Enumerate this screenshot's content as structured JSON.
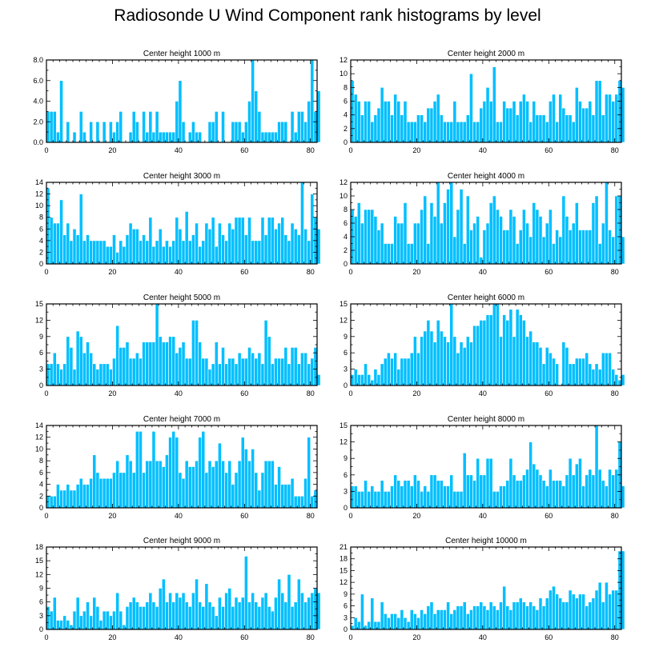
{
  "title": "Radiosonde U Wind Component rank histograms by level",
  "colors": {
    "bar": "#00bfff",
    "bar_edge": "#ffffff",
    "axis": "#000000"
  },
  "chart_data": [
    {
      "type": "bar",
      "title": "Center height 1000 m",
      "xlim": [
        0,
        82
      ],
      "ylim": [
        0,
        8
      ],
      "xticks": [
        0,
        20,
        40,
        60,
        80
      ],
      "yticks": [
        0,
        2,
        4,
        6,
        8
      ],
      "ytick_labels": [
        "0.0",
        "2.0",
        "4.0",
        "6.0",
        "8.0"
      ],
      "values": [
        3,
        3,
        3,
        1,
        6,
        0,
        2,
        0,
        1,
        0,
        3,
        1,
        0,
        2,
        0,
        2,
        0,
        2,
        0,
        2,
        1,
        2,
        3,
        0,
        0,
        1,
        3,
        2,
        0,
        3,
        1,
        3,
        1,
        3,
        1,
        1,
        1,
        1,
        1,
        4,
        6,
        2,
        0,
        1,
        2,
        1,
        1,
        0,
        0,
        2,
        2,
        3,
        0,
        3,
        0,
        0,
        2,
        2,
        2,
        1,
        2,
        4,
        8,
        5,
        3,
        1,
        1,
        1,
        1,
        1,
        2,
        2,
        2,
        0,
        3,
        1,
        3,
        3,
        2,
        4,
        8,
        3,
        5
      ]
    },
    {
      "type": "bar",
      "title": "Center height 2000 m",
      "xlim": [
        0,
        82
      ],
      "ylim": [
        0,
        12
      ],
      "xticks": [
        0,
        20,
        40,
        60,
        80
      ],
      "yticks": [
        0,
        2,
        4,
        6,
        8,
        10,
        12
      ],
      "ytick_labels": [
        "0",
        "2",
        "4",
        "6",
        "8",
        "10",
        "12"
      ],
      "values": [
        9,
        7,
        6,
        4,
        6,
        6,
        3,
        4,
        5,
        8,
        6,
        6,
        4,
        7,
        6,
        4,
        6,
        3,
        3,
        3,
        4,
        4,
        3,
        5,
        5,
        6,
        7,
        4,
        3,
        3,
        3,
        6,
        3,
        3,
        3,
        4,
        10,
        3,
        3,
        5,
        6,
        8,
        6,
        11,
        3,
        3,
        6,
        5,
        5,
        6,
        4,
        6,
        7,
        6,
        3,
        6,
        4,
        4,
        4,
        3,
        6,
        7,
        3,
        7,
        5,
        4,
        4,
        3,
        8,
        6,
        5,
        5,
        6,
        4,
        9,
        9,
        4,
        7,
        7,
        6,
        7,
        9,
        8
      ]
    },
    {
      "type": "bar",
      "title": "Center height 3000 m",
      "xlim": [
        0,
        82
      ],
      "ylim": [
        0,
        14
      ],
      "xticks": [
        0,
        20,
        40,
        60,
        80
      ],
      "yticks": [
        0,
        2,
        4,
        6,
        8,
        10,
        12,
        14
      ],
      "ytick_labels": [
        "0",
        "2",
        "4",
        "6",
        "8",
        "10",
        "12",
        "14"
      ],
      "values": [
        13,
        8,
        7,
        7,
        11,
        5,
        7,
        4,
        6,
        5,
        12,
        4,
        5,
        4,
        4,
        4,
        4,
        4,
        3,
        3,
        5,
        2,
        4,
        3,
        5,
        7,
        6,
        6,
        4,
        5,
        4,
        8,
        3,
        4,
        6,
        3,
        4,
        3,
        4,
        8,
        6,
        4,
        9,
        4,
        5,
        7,
        3,
        4,
        7,
        6,
        8,
        3,
        7,
        5,
        4,
        7,
        6,
        8,
        8,
        8,
        5,
        8,
        4,
        4,
        4,
        8,
        5,
        8,
        8,
        6,
        7,
        8,
        5,
        4,
        7,
        6,
        5,
        14,
        6,
        4,
        12,
        8,
        6
      ]
    },
    {
      "type": "bar",
      "title": "Center height 4000 m",
      "xlim": [
        0,
        82
      ],
      "ylim": [
        0,
        12
      ],
      "xticks": [
        0,
        20,
        40,
        60,
        80
      ],
      "yticks": [
        0,
        2,
        4,
        6,
        8,
        10,
        12
      ],
      "ytick_labels": [
        "0",
        "2",
        "4",
        "6",
        "8",
        "10",
        "12"
      ],
      "values": [
        8,
        7,
        9,
        6,
        8,
        8,
        8,
        7,
        5,
        6,
        3,
        3,
        3,
        7,
        6,
        6,
        9,
        3,
        3,
        6,
        6,
        8,
        10,
        3,
        9,
        7,
        12,
        6,
        9,
        11,
        12,
        4,
        8,
        11,
        3,
        10,
        5,
        6,
        7,
        1,
        5,
        6,
        9,
        10,
        8,
        7,
        5,
        5,
        8,
        7,
        3,
        5,
        8,
        6,
        4,
        9,
        8,
        7,
        4,
        6,
        8,
        3,
        5,
        4,
        10,
        7,
        5,
        6,
        9,
        5,
        5,
        5,
        5,
        9,
        10,
        3,
        6,
        12,
        5,
        4,
        10,
        10,
        4
      ]
    },
    {
      "type": "bar",
      "title": "Center height 5000 m",
      "xlim": [
        0,
        82
      ],
      "ylim": [
        0,
        15
      ],
      "xticks": [
        0,
        20,
        40,
        60,
        80
      ],
      "yticks": [
        0,
        3,
        6,
        9,
        12,
        15
      ],
      "ytick_labels": [
        "0",
        "3",
        "6",
        "9",
        "12",
        "15"
      ],
      "values": [
        4,
        4,
        6,
        4,
        3,
        4,
        9,
        7,
        3,
        10,
        9,
        6,
        8,
        6,
        4,
        3,
        4,
        4,
        4,
        3,
        5,
        11,
        7,
        7,
        8,
        5,
        5,
        6,
        5,
        8,
        8,
        8,
        8,
        15,
        9,
        8,
        8,
        9,
        9,
        6,
        7,
        8,
        5,
        5,
        12,
        12,
        8,
        5,
        5,
        3,
        4,
        8,
        4,
        7,
        4,
        5,
        5,
        4,
        6,
        5,
        5,
        7,
        6,
        5,
        6,
        4,
        12,
        9,
        4,
        5,
        5,
        5,
        7,
        4,
        7,
        7,
        4,
        6,
        6,
        4,
        5,
        7,
        2
      ]
    },
    {
      "type": "bar",
      "title": "Center height 6000 m",
      "xlim": [
        0,
        82
      ],
      "ylim": [
        0,
        15
      ],
      "xticks": [
        0,
        20,
        40,
        60,
        80
      ],
      "yticks": [
        0,
        3,
        6,
        9,
        12,
        15
      ],
      "ytick_labels": [
        "0",
        "3",
        "6",
        "9",
        "12",
        "15"
      ],
      "values": [
        2,
        3,
        2,
        2,
        4,
        2,
        1,
        3,
        2,
        4,
        5,
        6,
        5,
        6,
        3,
        5,
        5,
        5,
        6,
        9,
        6,
        9,
        10,
        12,
        10,
        8,
        12,
        10,
        9,
        8,
        15,
        9,
        6,
        8,
        7,
        9,
        8,
        11,
        11,
        12,
        12,
        13,
        13,
        15,
        15,
        9,
        13,
        12,
        14,
        9,
        14,
        13,
        12,
        9,
        10,
        8,
        8,
        7,
        4,
        7,
        6,
        5,
        4,
        0,
        8,
        7,
        4,
        4,
        5,
        5,
        5,
        6,
        4,
        3,
        4,
        3,
        6,
        6,
        6,
        3,
        2,
        1,
        2
      ]
    },
    {
      "type": "bar",
      "title": "Center height 7000 m",
      "xlim": [
        0,
        82
      ],
      "ylim": [
        0,
        14
      ],
      "xticks": [
        0,
        20,
        40,
        60,
        80
      ],
      "yticks": [
        0,
        2,
        4,
        6,
        8,
        10,
        12,
        14
      ],
      "ytick_labels": [
        "0",
        "2",
        "4",
        "6",
        "8",
        "10",
        "12",
        "14"
      ],
      "values": [
        2,
        2,
        2,
        4,
        3,
        3,
        4,
        3,
        3,
        4,
        5,
        4,
        4,
        5,
        9,
        6,
        5,
        5,
        5,
        5,
        6,
        8,
        6,
        6,
        9,
        8,
        6,
        13,
        13,
        6,
        8,
        8,
        13,
        8,
        8,
        7,
        9,
        12,
        13,
        12,
        6,
        5,
        8,
        7,
        7,
        8,
        12,
        13,
        6,
        8,
        7,
        8,
        11,
        8,
        6,
        8,
        4,
        6,
        8,
        12,
        10,
        8,
        10,
        6,
        3,
        6,
        8,
        8,
        8,
        4,
        7,
        4,
        4,
        4,
        5,
        2,
        2,
        2,
        5,
        12,
        2,
        3,
        0
      ]
    },
    {
      "type": "bar",
      "title": "Center height 8000 m",
      "xlim": [
        0,
        82
      ],
      "ylim": [
        0,
        15
      ],
      "xticks": [
        0,
        20,
        40,
        60,
        80
      ],
      "yticks": [
        0,
        3,
        6,
        9,
        12,
        15
      ],
      "ytick_labels": [
        "0",
        "3",
        "6",
        "9",
        "12",
        "15"
      ],
      "values": [
        4,
        4,
        3,
        3,
        5,
        3,
        4,
        3,
        3,
        5,
        3,
        3,
        4,
        6,
        5,
        4,
        5,
        5,
        4,
        6,
        5,
        3,
        4,
        3,
        6,
        6,
        5,
        5,
        4,
        4,
        6,
        3,
        3,
        3,
        10,
        6,
        6,
        5,
        9,
        6,
        6,
        9,
        9,
        3,
        3,
        4,
        4,
        5,
        9,
        6,
        5,
        5,
        6,
        7,
        12,
        8,
        7,
        6,
        5,
        4,
        7,
        5,
        5,
        5,
        4,
        6,
        9,
        6,
        8,
        9,
        4,
        6,
        7,
        6,
        15,
        7,
        5,
        4,
        7,
        6,
        7,
        12,
        4
      ]
    },
    {
      "type": "bar",
      "title": "Center height 9000 m",
      "xlim": [
        0,
        82
      ],
      "ylim": [
        0,
        18
      ],
      "xticks": [
        0,
        20,
        40,
        60,
        80
      ],
      "yticks": [
        0,
        3,
        6,
        9,
        12,
        15,
        18
      ],
      "ytick_labels": [
        "0",
        "3",
        "6",
        "9",
        "12",
        "15",
        "18"
      ],
      "values": [
        5,
        4,
        7,
        2,
        2,
        3,
        2,
        1,
        4,
        7,
        3,
        4,
        6,
        3,
        7,
        5,
        2,
        4,
        4,
        3,
        4,
        8,
        4,
        1,
        5,
        6,
        7,
        6,
        5,
        5,
        6,
        8,
        6,
        5,
        9,
        11,
        6,
        8,
        6,
        8,
        7,
        8,
        6,
        5,
        8,
        11,
        6,
        5,
        10,
        6,
        5,
        3,
        7,
        5,
        8,
        9,
        5,
        7,
        6,
        7,
        16,
        6,
        8,
        6,
        5,
        7,
        8,
        5,
        4,
        7,
        11,
        8,
        6,
        12,
        5,
        6,
        11,
        8,
        6,
        7,
        8,
        9,
        8
      ]
    },
    {
      "type": "bar",
      "title": "Center height 10000 m",
      "xlim": [
        0,
        82
      ],
      "ylim": [
        0,
        21
      ],
      "xticks": [
        0,
        20,
        40,
        60,
        80
      ],
      "yticks": [
        0,
        3,
        6,
        9,
        12,
        15,
        18,
        21
      ],
      "ytick_labels": [
        "0",
        "3",
        "6",
        "9",
        "12",
        "15",
        "18",
        "21"
      ],
      "values": [
        1,
        3,
        2,
        9,
        1,
        2,
        8,
        2,
        2,
        7,
        4,
        3,
        4,
        4,
        3,
        5,
        3,
        2,
        5,
        4,
        3,
        5,
        4,
        6,
        7,
        4,
        5,
        5,
        5,
        7,
        4,
        5,
        6,
        6,
        7,
        4,
        5,
        6,
        6,
        7,
        6,
        5,
        7,
        6,
        5,
        7,
        11,
        6,
        5,
        7,
        7,
        8,
        7,
        6,
        7,
        6,
        5,
        8,
        6,
        8,
        10,
        11,
        9,
        8,
        7,
        7,
        10,
        9,
        8,
        9,
        9,
        6,
        7,
        8,
        10,
        12,
        7,
        12,
        9,
        10,
        10,
        20,
        20
      ]
    }
  ]
}
